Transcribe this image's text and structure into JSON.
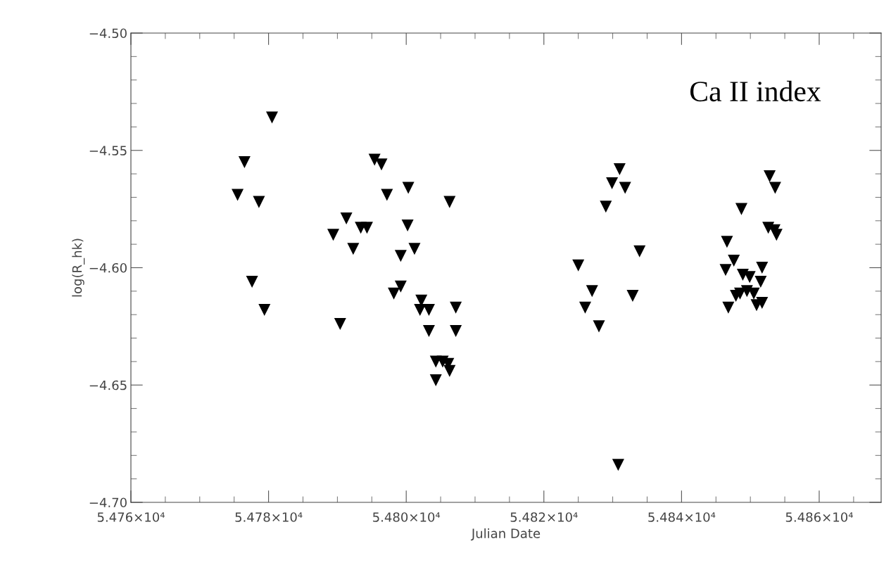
{
  "chart_data": {
    "type": "scatter",
    "xlabel": "Julian Date",
    "ylabel": "log(R_hk)",
    "annotations": [
      {
        "text": "Ca II index"
      }
    ],
    "marker": "triangle",
    "grid": false,
    "legend": false,
    "xlim": [
      54760,
      54869
    ],
    "ylim": [
      -4.7,
      -4.5
    ],
    "xticks": [
      {
        "value": 54760,
        "label": "5.476×10⁴"
      },
      {
        "value": 54780,
        "label": "5.478×10⁴"
      },
      {
        "value": 54800,
        "label": "5.480×10⁴"
      },
      {
        "value": 54820,
        "label": "5.482×10⁴"
      },
      {
        "value": 54840,
        "label": "5.484×10⁴"
      },
      {
        "value": 54860,
        "label": "5.486×10⁴"
      }
    ],
    "yticks": [
      {
        "value": -4.7,
        "label": "−4.70"
      },
      {
        "value": -4.65,
        "label": "−4.65"
      },
      {
        "value": -4.6,
        "label": "−4.60"
      },
      {
        "value": -4.55,
        "label": "−4.55"
      },
      {
        "value": -4.5,
        "label": "−4.50"
      }
    ],
    "series": [
      {
        "color": "#000000",
        "x": [
          54775.5,
          54776.5,
          54778.6,
          54777.6,
          54779.4,
          54780.5,
          54789.4,
          54790.4,
          54791.3,
          54792.3,
          54793.4,
          54794.3,
          54795.4,
          54796.4,
          54797.2,
          54798.2,
          54799.2,
          54799.2,
          54800.3,
          54800.2,
          54801.2,
          54802.2,
          54802.0,
          54803.3,
          54803.3,
          54804.3,
          54805.3,
          54806.1,
          54804.3,
          54806.3,
          54806.3,
          54807.2,
          54807.2,
          54831.0,
          54829.9,
          54831.8,
          54829.0,
          54833.9,
          54825.0,
          54827.0,
          54832.9,
          54826.0,
          54828.0,
          54830.8,
          54852.8,
          54853.6,
          54848.7,
          54852.6,
          54853.5,
          54853.8,
          54846.6,
          54847.6,
          54846.4,
          54848.9,
          54849.9,
          54851.7,
          54851.5,
          54848.5,
          54849.5,
          54850.5,
          54847.9,
          54846.8,
          54850.9,
          54851.7
        ],
        "values": [
          -4.569,
          -4.555,
          -4.572,
          -4.606,
          -4.618,
          -4.536,
          -4.586,
          -4.624,
          -4.579,
          -4.592,
          -4.583,
          -4.583,
          -4.554,
          -4.556,
          -4.569,
          -4.611,
          -4.608,
          -4.595,
          -4.566,
          -4.582,
          -4.592,
          -4.614,
          -4.618,
          -4.618,
          -4.627,
          -4.64,
          -4.64,
          -4.641,
          -4.648,
          -4.644,
          -4.572,
          -4.617,
          -4.627,
          -4.558,
          -4.564,
          -4.566,
          -4.574,
          -4.593,
          -4.599,
          -4.61,
          -4.612,
          -4.617,
          -4.625,
          -4.684,
          -4.561,
          -4.566,
          -4.575,
          -4.583,
          -4.584,
          -4.586,
          -4.589,
          -4.597,
          -4.601,
          -4.603,
          -4.604,
          -4.6,
          -4.606,
          -4.611,
          -4.61,
          -4.611,
          -4.612,
          -4.617,
          -4.616,
          -4.615
        ]
      }
    ]
  }
}
